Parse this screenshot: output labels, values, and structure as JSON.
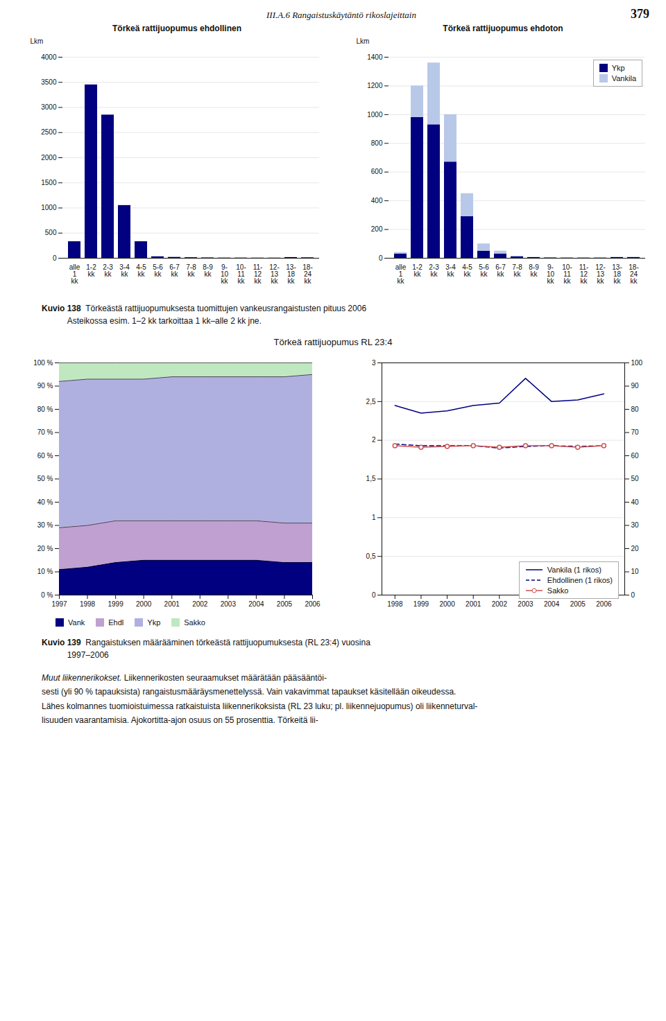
{
  "page_header": "III.A.6  Rangaistuskäytäntö rikoslajeittain",
  "page_number": "379",
  "chart_data": [
    {
      "type": "bar",
      "title": "Törkeä rattijuopumus ehdollinen",
      "ylabel": "Lkm",
      "categories": [
        "alle\n1\nkk",
        "1-2\nkk",
        "2-3\nkk",
        "3-4\nkk",
        "4-5\nkk",
        "5-6\nkk",
        "6-7\nkk",
        "7-8\nkk",
        "8-9\nkk",
        "9-\n10\nkk",
        "10-\n11\nkk",
        "11-\n12\nkk",
        "12-\n13\nkk",
        "13-\n18\nkk",
        "18-\n24\nkk"
      ],
      "values": [
        330,
        3450,
        2850,
        1050,
        330,
        30,
        18,
        12,
        8,
        5,
        5,
        4,
        4,
        15,
        10
      ],
      "color": "#000080",
      "ylim": [
        0,
        4000
      ],
      "yticks": [
        0,
        500,
        1000,
        1500,
        2000,
        2500,
        3000,
        3500,
        4000
      ],
      "grid": true
    },
    {
      "type": "bar",
      "title": "Törkeä rattijuopumus ehdoton",
      "ylabel": "Lkm",
      "categories": [
        "alle\n1\nkk",
        "1-2\nkk",
        "2-3\nkk",
        "3-4\nkk",
        "4-5\nkk",
        "5-6\nkk",
        "6-7\nkk",
        "7-8\nkk",
        "8-9\nkk",
        "9-\n10\nkk",
        "10-\n11\nkk",
        "11-\n12\nkk",
        "12-\n13\nkk",
        "13-\n18\nkk",
        "18-\n24\nkk"
      ],
      "series": [
        {
          "name": "Ykp",
          "color": "#000080",
          "values": [
            30,
            980,
            930,
            670,
            290,
            50,
            30,
            10,
            5,
            3,
            2,
            2,
            2,
            5,
            5
          ]
        },
        {
          "name": "Vankila",
          "color": "#b8c8e8",
          "values": [
            10,
            220,
            430,
            330,
            160,
            50,
            20,
            5,
            2,
            1,
            1,
            1,
            1,
            3,
            3
          ]
        }
      ],
      "stacked": true,
      "ylim": [
        0,
        1400
      ],
      "yticks": [
        0,
        200,
        400,
        600,
        800,
        1000,
        1200,
        1400
      ],
      "grid": true,
      "legend": "upper right"
    },
    {
      "type": "area",
      "title": "Törkeä rattijuopumus RL 23:4",
      "x": [
        1997,
        1998,
        1999,
        2000,
        2001,
        2002,
        2003,
        2004,
        2005,
        2006
      ],
      "series": [
        {
          "name": "Vank",
          "color": "#000080",
          "values": [
            11,
            12,
            14,
            15,
            15,
            15,
            15,
            15,
            14,
            14
          ]
        },
        {
          "name": "Ehdl",
          "color": "#c0a0d0",
          "values": [
            18,
            18,
            18,
            17,
            17,
            17,
            17,
            17,
            17,
            17
          ]
        },
        {
          "name": "Ykp",
          "color": "#b0b0e0",
          "values": [
            63,
            63,
            61,
            61,
            62,
            62,
            62,
            62,
            63,
            64
          ]
        },
        {
          "name": "Sakko",
          "color": "#c0e8c0",
          "values": [
            8,
            7,
            7,
            7,
            6,
            6,
            6,
            6,
            6,
            5
          ]
        }
      ],
      "stacked": true,
      "xlim": [
        1997,
        2006
      ],
      "xticks": [
        1997,
        1998,
        1999,
        2000,
        2001,
        2002,
        2003,
        2004,
        2005,
        2006
      ],
      "ylim": [
        0,
        100
      ],
      "yticks": [
        {
          "value": 0,
          "label": "0 %"
        },
        {
          "value": 10,
          "label": "10 %"
        },
        {
          "value": 20,
          "label": "20 %"
        },
        {
          "value": 30,
          "label": "30 %"
        },
        {
          "value": 40,
          "label": "40 %"
        },
        {
          "value": 50,
          "label": "50 %"
        },
        {
          "value": 60,
          "label": "60 %"
        },
        {
          "value": 70,
          "label": "70 %"
        },
        {
          "value": 80,
          "label": "80 %"
        },
        {
          "value": 90,
          "label": "90 %"
        },
        {
          "value": 100,
          "label": "100 %"
        }
      ],
      "grid": true,
      "legend": "bottom"
    },
    {
      "type": "line",
      "x": [
        1998,
        1999,
        2000,
        2001,
        2002,
        2003,
        2004,
        2005,
        2006
      ],
      "series": [
        {
          "name": "Vankila (1 rikos)",
          "color": "#000080",
          "line_style": "solid",
          "values": [
            2.45,
            2.35,
            2.38,
            2.45,
            2.48,
            2.8,
            2.5,
            2.52,
            2.6
          ]
        },
        {
          "name": "Ehdollinen (1 rikos)",
          "color": "#000080",
          "line_style": "dashed",
          "values": [
            1.95,
            1.93,
            1.93,
            1.93,
            1.9,
            1.92,
            1.93,
            1.92,
            1.93
          ]
        },
        {
          "name": "Sakko",
          "color": "#d05050",
          "line_style": "solid",
          "marker": "circle",
          "values": [
            1.93,
            1.91,
            1.92,
            1.93,
            1.91,
            1.93,
            1.93,
            1.91,
            1.93
          ]
        }
      ],
      "xlim": [
        1997.5,
        2006.8
      ],
      "xticks": [
        1998,
        1999,
        2000,
        2001,
        2002,
        2003,
        2004,
        2005,
        2006
      ],
      "ylim": [
        0,
        3
      ],
      "yticks": [
        0,
        {
          "value": 0.5,
          "label": "0,5"
        },
        1,
        {
          "value": 1.5,
          "label": "1,5"
        },
        2,
        {
          "value": 2.5,
          "label": "2,5"
        },
        3
      ],
      "y2lim": [
        0,
        100
      ],
      "y2ticks": [
        0,
        10,
        20,
        30,
        40,
        50,
        60,
        70,
        80,
        90,
        100
      ],
      "grid": true,
      "legend": "lower right"
    }
  ],
  "captions": [
    {
      "label": "Kuvio 138",
      "text": "  Törkeästä rattijuopumuksesta tuomittujen vankeusrangaistusten pituus 2006",
      "note": "           Asteikossa esim. 1–2 kk tarkoittaa 1 kk–alle 2 kk jne."
    },
    {
      "label": "Kuvio 139",
      "text": "  Rangaistuksen määrääminen törkeästä rattijuopumuksesta (RL 23:4) vuosina",
      "note": "           1997–2006"
    }
  ],
  "body_heading": "Muut liikennerikokset.",
  "body_lines": [
    "Liikennerikosten seuraamukset määrätään pääsääntöi-",
    "sesti (yli 90 % tapauksista) rangaistusmääräysmenettelyssä. Vain vakavimmat tapaukset käsitellään oikeudessa.",
    "Lähes kolmannes tuomioistuimessa ratkaistuista liikennerikoksista (RL 23 luku; pl. liikennejuopumus) oli liikenneturval-",
    "lisuuden vaarantamisia. Ajokortitta-ajon osuus on 55 prosenttia. Törkeitä lii-"
  ]
}
